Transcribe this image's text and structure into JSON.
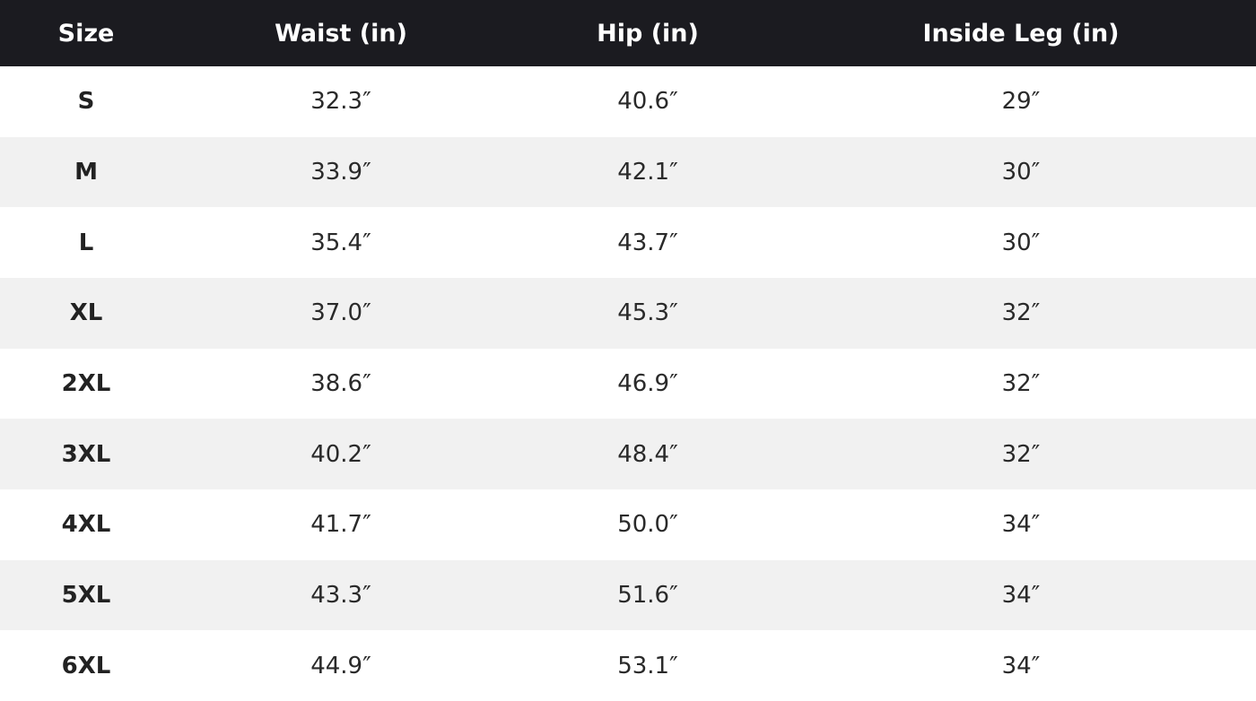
{
  "table": {
    "header": [
      "Size",
      "Waist (in)",
      "Hip (in)",
      "Inside Leg (in)"
    ],
    "rows": [
      [
        "S",
        "32.3″",
        "40.6″",
        "29″"
      ],
      [
        "M",
        "33.9″",
        "42.1″",
        "30″"
      ],
      [
        "L",
        "35.4″",
        "43.7″",
        "30″"
      ],
      [
        "XL",
        "37.0″",
        "45.3″",
        "32″"
      ],
      [
        "2XL",
        "38.6″",
        "46.9″",
        "32″"
      ],
      [
        "3XL",
        "40.2″",
        "48.4″",
        "32″"
      ],
      [
        "4XL",
        "41.7″",
        "50.0″",
        "34″"
      ],
      [
        "5XL",
        "43.3″",
        "51.6″",
        "34″"
      ],
      [
        "6XL",
        "44.9″",
        "53.1″",
        "34″"
      ]
    ]
  }
}
